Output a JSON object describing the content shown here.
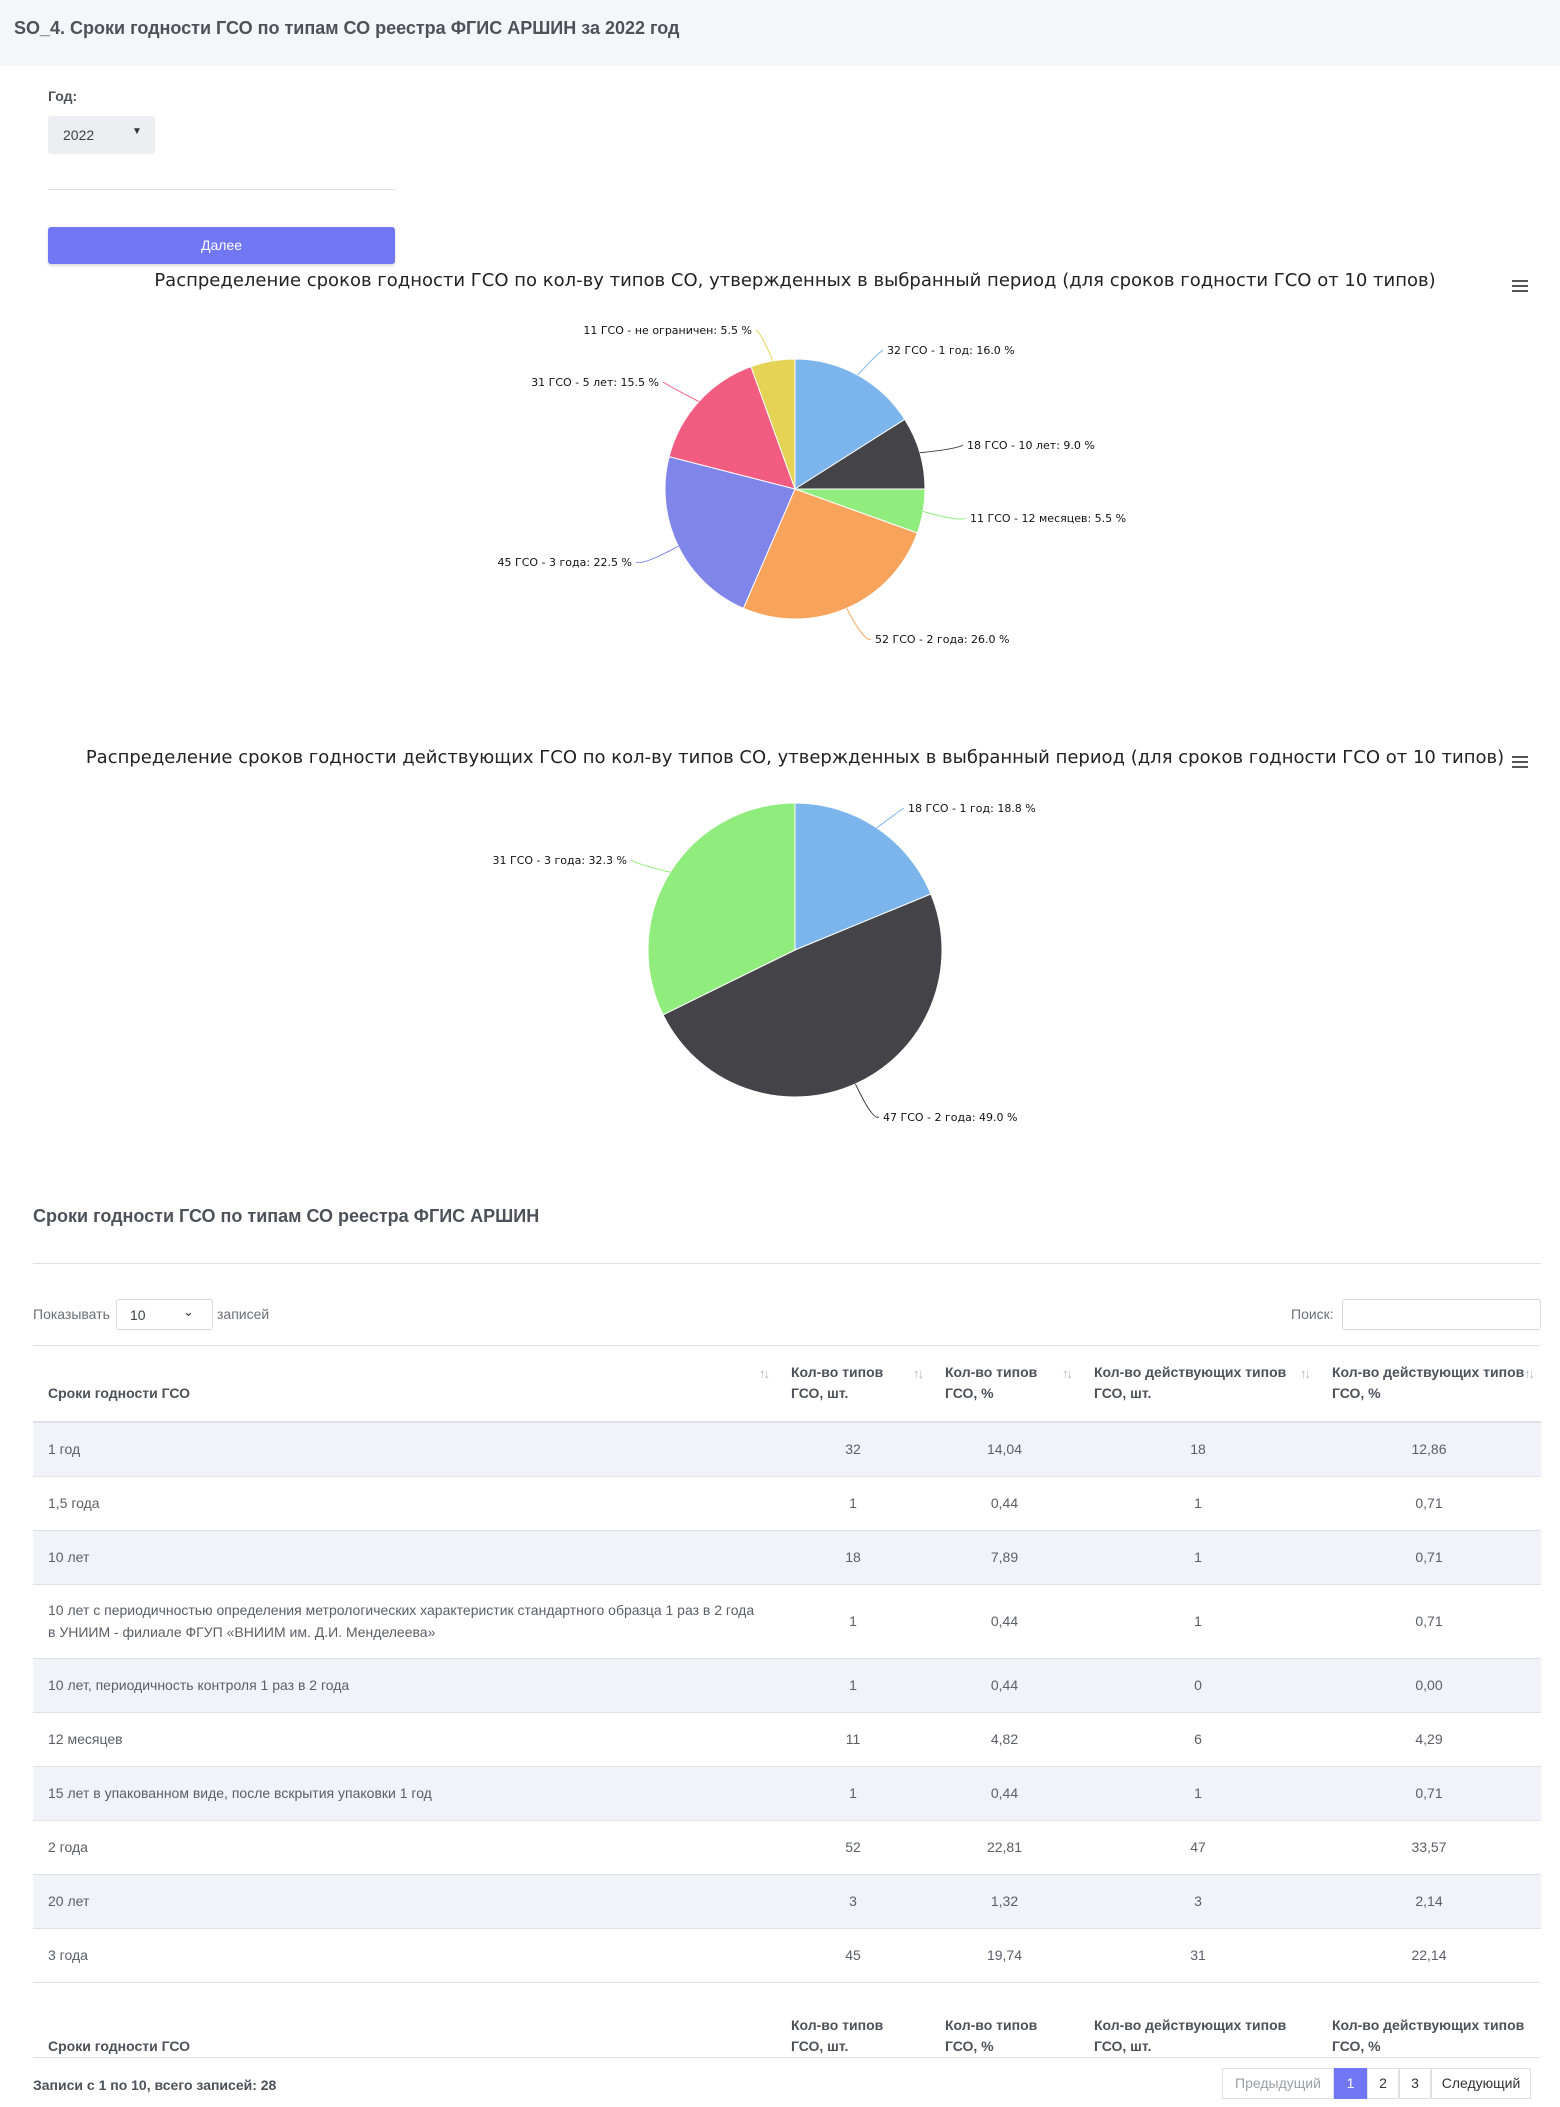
{
  "page_title": "SO_4. Сроки годности ГСО по типам СО реестра ФГИС АРШИН за 2022 год",
  "filter": {
    "year_label": "Год:",
    "year_value": "2022",
    "next_label": "Далее"
  },
  "colors": {
    "accent": "#7076f4"
  },
  "chart_data": [
    {
      "type": "pie",
      "title": "Распределение сроков годности ГСО по кол-ву типов СО, утвержденных в выбранный период (для сроков годности ГСО от 10 типов)",
      "slices": [
        {
          "label": "32 ГСО - 1 год: 16.0 %",
          "value": 16.0,
          "color": "#7cb5ec"
        },
        {
          "label": "18 ГСО - 10 лет: 9.0 %",
          "value": 9.0,
          "color": "#434348"
        },
        {
          "label": "11 ГСО - 12 месяцев: 5.5 %",
          "value": 5.5,
          "color": "#90ed7d"
        },
        {
          "label": "52 ГСО - 2 года: 26.0 %",
          "value": 26.0,
          "color": "#f7a35c"
        },
        {
          "label": "45 ГСО - 3 года: 22.5 %",
          "value": 22.5,
          "color": "#8085e9"
        },
        {
          "label": "31 ГСО - 5 лет: 15.5 %",
          "value": 15.5,
          "color": "#f15c80"
        },
        {
          "label": "11 ГСО - не ограничен: 5.5 %",
          "value": 5.5,
          "color": "#e4d354"
        }
      ]
    },
    {
      "type": "pie",
      "title": "Распределение сроков годности действующих ГСО по кол-ву типов СО, утвержденных в выбранный период (для сроков годности ГСО от 10 типов)",
      "slices": [
        {
          "label": "18 ГСО - 1 год: 18.8 %",
          "value": 18.8,
          "color": "#7cb5ec"
        },
        {
          "label": "47 ГСО - 2 года: 49.0 %",
          "value": 49.0,
          "color": "#434348"
        },
        {
          "label": "31 ГСО - 3 года: 32.3 %",
          "value": 32.3,
          "color": "#90ed7d"
        }
      ]
    }
  ],
  "table": {
    "title": "Сроки годности ГСО по типам СО реестра ФГИС АРШИН",
    "show_label": "Показывать",
    "length_value": "10",
    "records_label": "записей",
    "search_label": "Поиск:",
    "columns": [
      "Сроки годности ГСО",
      "Кол-во типов ГСО, шт.",
      "Кол-во типов ГСО, %",
      "Кол-во действующих типов ГСО, шт.",
      "Кол-во действующих типов ГСО, %"
    ],
    "rows": [
      [
        "1 год",
        "32",
        "14,04",
        "18",
        "12,86"
      ],
      [
        "1,5 года",
        "1",
        "0,44",
        "1",
        "0,71"
      ],
      [
        "10 лет",
        "18",
        "7,89",
        "1",
        "0,71"
      ],
      [
        "10 лет с периодичностью определения метрологических характеристик стандартного образца 1 раз в 2 года в УНИИМ - филиале ФГУП «ВНИИМ им. Д.И. Менделеева»",
        "1",
        "0,44",
        "1",
        "0,71"
      ],
      [
        "10 лет, периодичность контроля 1 раз в 2 года",
        "1",
        "0,44",
        "0",
        "0,00"
      ],
      [
        "12 месяцев",
        "11",
        "4,82",
        "6",
        "4,29"
      ],
      [
        "15 лет в упакованном виде, после вскрытия упаковки 1 год",
        "1",
        "0,44",
        "1",
        "0,71"
      ],
      [
        "2 года",
        "52",
        "22,81",
        "47",
        "33,57"
      ],
      [
        "20 лет",
        "3",
        "1,32",
        "3",
        "2,14"
      ],
      [
        "3 года",
        "45",
        "19,74",
        "31",
        "22,14"
      ]
    ],
    "info": "Записи с 1 по 10, всего записей: 28",
    "pagination": {
      "prev": "Предыдущий",
      "pages": [
        "1",
        "2",
        "3"
      ],
      "next": "Следующий"
    }
  }
}
